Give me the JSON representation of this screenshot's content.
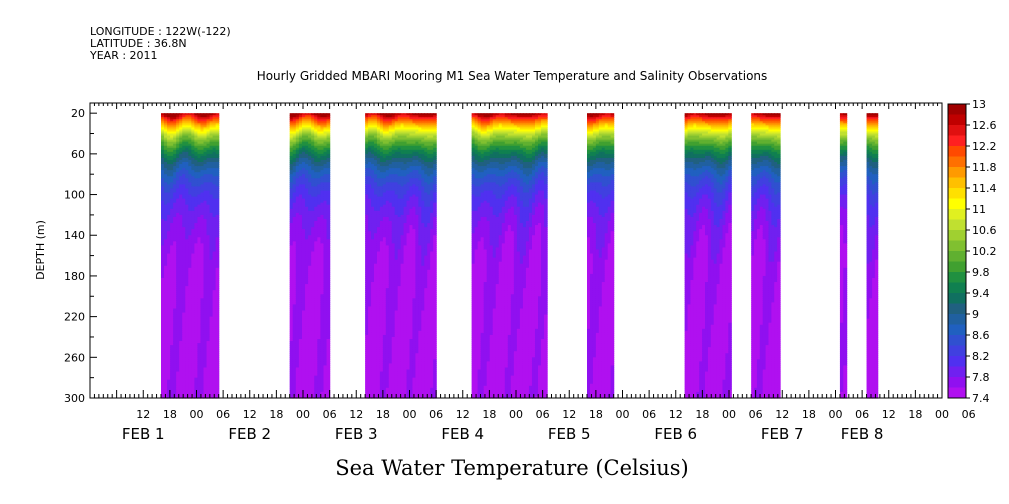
{
  "header": {
    "longitude": "LONGITUDE : 122W(-122)",
    "latitude": "LATITUDE : 36.8N",
    "year": "YEAR : 2011",
    "title": "Hourly Gridded MBARI Mooring M1 Sea Water Temperature and Salinity Observations"
  },
  "chart_data": {
    "type": "heatmap",
    "title": "Hourly Gridded MBARI Mooring M1 Sea Water Temperature and Salinity Observations",
    "xlabel": "Sea Water Temperature (Celsius)",
    "ylabel": "DEPTH (m)",
    "x_range_hours": [
      0,
      192
    ],
    "y_range": [
      300,
      10
    ],
    "y_inverted": true,
    "y_ticks": [
      20,
      60,
      100,
      140,
      180,
      220,
      260,
      300
    ],
    "x_hour_ticks": [
      {
        "h": 12,
        "label": "12"
      },
      {
        "h": 18,
        "label": "18"
      },
      {
        "h": 24,
        "label": "00"
      },
      {
        "h": 30,
        "label": "06"
      },
      {
        "h": 36,
        "label": "12"
      },
      {
        "h": 42,
        "label": "18"
      },
      {
        "h": 48,
        "label": "00"
      },
      {
        "h": 54,
        "label": "06"
      },
      {
        "h": 60,
        "label": "12"
      },
      {
        "h": 66,
        "label": "18"
      },
      {
        "h": 72,
        "label": "00"
      },
      {
        "h": 78,
        "label": "06"
      },
      {
        "h": 84,
        "label": "12"
      },
      {
        "h": 90,
        "label": "18"
      },
      {
        "h": 96,
        "label": "00"
      },
      {
        "h": 102,
        "label": "06"
      },
      {
        "h": 108,
        "label": "12"
      },
      {
        "h": 114,
        "label": "18"
      },
      {
        "h": 120,
        "label": "00"
      },
      {
        "h": 126,
        "label": "06"
      },
      {
        "h": 132,
        "label": "12"
      },
      {
        "h": 138,
        "label": "18"
      },
      {
        "h": 144,
        "label": "00"
      },
      {
        "h": 150,
        "label": "06"
      },
      {
        "h": 156,
        "label": "12"
      },
      {
        "h": 162,
        "label": "18"
      },
      {
        "h": 168,
        "label": "00"
      },
      {
        "h": 174,
        "label": "06"
      },
      {
        "h": 180,
        "label": "12"
      },
      {
        "h": 186,
        "label": "18"
      },
      {
        "h": 192,
        "label": "00"
      },
      {
        "h": 198,
        "label": "06"
      }
    ],
    "date_labels": [
      {
        "h": 12,
        "label": "FEB  1"
      },
      {
        "h": 36,
        "label": "FEB  2"
      },
      {
        "h": 60,
        "label": "FEB  3"
      },
      {
        "h": 84,
        "label": "FEB  4"
      },
      {
        "h": 108,
        "label": "FEB  5"
      },
      {
        "h": 132,
        "label": "FEB  6"
      },
      {
        "h": 156,
        "label": "FEB  7"
      },
      {
        "h": 174,
        "label": "FEB  8"
      }
    ],
    "data_segments": [
      {
        "start_h": 16.0,
        "end_h": 29.0
      },
      {
        "start_h": 45.0,
        "end_h": 54.0
      },
      {
        "start_h": 62.0,
        "end_h": 78.0
      },
      {
        "start_h": 86.0,
        "end_h": 103.0
      },
      {
        "start_h": 112.0,
        "end_h": 118.0
      },
      {
        "start_h": 134.0,
        "end_h": 144.5
      },
      {
        "start_h": 149.0,
        "end_h": 155.5
      },
      {
        "start_h": 169.0,
        "end_h": 170.5
      },
      {
        "start_h": 175.0,
        "end_h": 177.5
      }
    ],
    "colorbar": {
      "min": 7.4,
      "max": 13,
      "labels": [
        "13",
        "12.6",
        "12.2",
        "11.8",
        "11.4",
        "11",
        "10.6",
        "10.2",
        "9.8",
        "9.4",
        "9",
        "8.6",
        "8.2",
        "7.8",
        "7.4"
      ],
      "colors_top_to_bottom": [
        "#a00000",
        "#c00000",
        "#e01010",
        "#ff2020",
        "#ff4a00",
        "#ff7000",
        "#ff9a00",
        "#ffc000",
        "#ffe000",
        "#ffff00",
        "#e0f020",
        "#c0e030",
        "#a0d030",
        "#80c030",
        "#60b030",
        "#40a030",
        "#209040",
        "#108050",
        "#107060",
        "#206080",
        "#2060a0",
        "#2060c0",
        "#3050d0",
        "#4040e0",
        "#5030f0",
        "#7020f0",
        "#9010f0",
        "#b010f0"
      ]
    }
  }
}
